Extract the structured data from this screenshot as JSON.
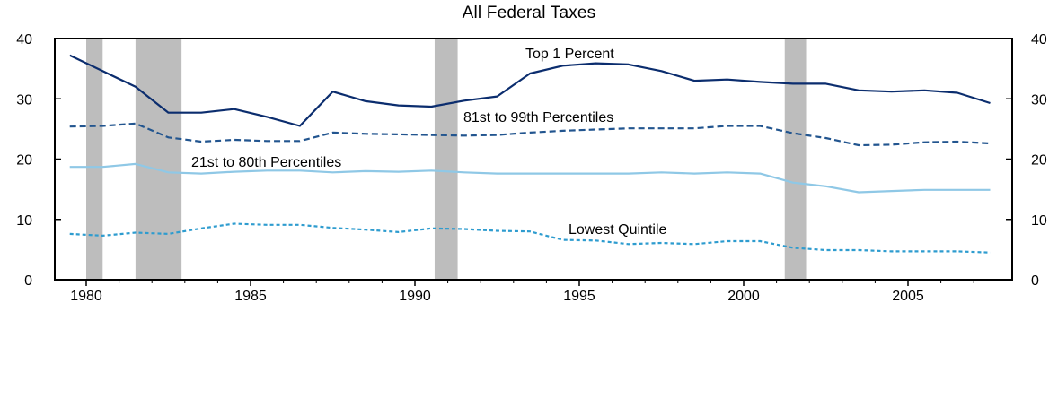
{
  "chart_data": {
    "type": "line",
    "title": "All Federal Taxes",
    "xlabel": "",
    "ylabel": "",
    "xlim": [
      1979.5,
      2008.0
    ],
    "ylim": [
      0,
      40
    ],
    "grid": false,
    "x_ticks": [
      "1980",
      "1985",
      "1990",
      "1995",
      "2000",
      "2005"
    ],
    "y_ticks": [
      "0",
      "10",
      "20",
      "30",
      "40"
    ],
    "recessions": [
      [
        1980.0,
        1980.5
      ],
      [
        1981.5,
        1982.9
      ],
      [
        1990.6,
        1991.3
      ],
      [
        2001.25,
        2001.9
      ]
    ],
    "x": [
      1979.5,
      1980.5,
      1981.5,
      1982.5,
      1983.5,
      1984.5,
      1985.5,
      1986.5,
      1987.5,
      1988.5,
      1989.5,
      1990.5,
      1991.5,
      1992.5,
      1993.5,
      1994.5,
      1995.5,
      1996.5,
      1997.5,
      1998.5,
      1999.5,
      2000.5,
      2001.5,
      2002.5,
      2003.5,
      2004.5,
      2005.5,
      2006.5,
      2007.5
    ],
    "series": [
      {
        "name": "Top 1 Percent",
        "color": "#0b2d6e",
        "style": "solid",
        "values": [
          37.2,
          34.6,
          32.0,
          27.7,
          27.7,
          28.3,
          27.0,
          25.5,
          31.2,
          29.6,
          28.9,
          28.7,
          29.7,
          30.4,
          34.2,
          35.5,
          35.9,
          35.7,
          34.6,
          33.0,
          33.2,
          32.8,
          32.5,
          32.5,
          31.4,
          31.2,
          31.4,
          31.0,
          29.3
        ]
      },
      {
        "name": "81st to 99th Percentiles",
        "color": "#22558f",
        "style": "dashed",
        "values": [
          25.4,
          25.5,
          25.9,
          23.6,
          22.9,
          23.2,
          23.0,
          23.0,
          24.4,
          24.2,
          24.1,
          24.0,
          23.9,
          24.0,
          24.4,
          24.7,
          24.9,
          25.1,
          25.1,
          25.1,
          25.5,
          25.5,
          24.3,
          23.5,
          22.3,
          22.4,
          22.8,
          22.9,
          22.6
        ]
      },
      {
        "name": "21st to 80th Percentiles",
        "color": "#8fc8e6",
        "style": "solid",
        "values": [
          18.7,
          18.7,
          19.2,
          17.8,
          17.6,
          17.9,
          18.1,
          18.1,
          17.8,
          18.0,
          17.9,
          18.1,
          17.8,
          17.6,
          17.6,
          17.6,
          17.6,
          17.6,
          17.8,
          17.6,
          17.8,
          17.6,
          16.1,
          15.5,
          14.5,
          14.7,
          14.9,
          14.9,
          14.9
        ]
      },
      {
        "name": "Lowest Quintile",
        "color": "#2e9ccf",
        "style": "dotted",
        "values": [
          7.6,
          7.3,
          7.8,
          7.6,
          8.5,
          9.3,
          9.1,
          9.1,
          8.6,
          8.3,
          7.9,
          8.5,
          8.4,
          8.1,
          8.0,
          6.6,
          6.5,
          5.9,
          6.1,
          5.9,
          6.4,
          6.4,
          5.3,
          4.9,
          4.9,
          4.7,
          4.7,
          4.7,
          4.5
        ]
      }
    ]
  }
}
